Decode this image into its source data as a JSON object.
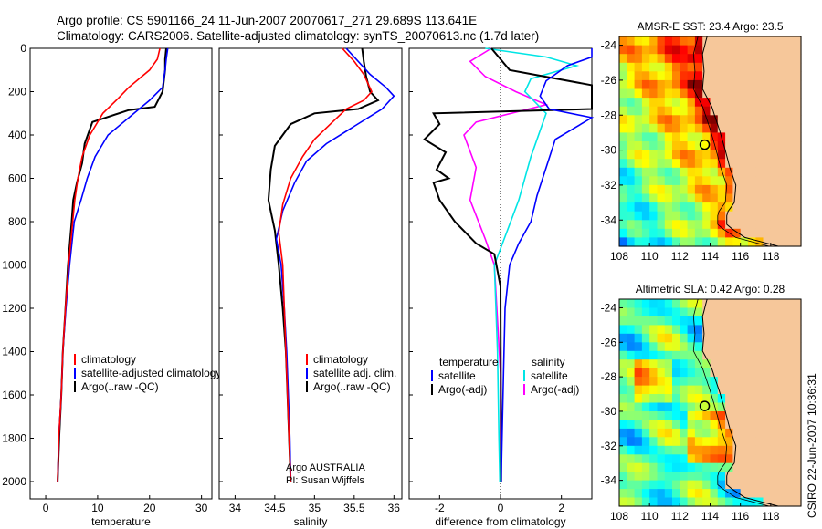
{
  "header": {
    "line1": "Argo profile: CS 5901166_24 11-Jun-2007 20070617_271 29.689S 113.641E",
    "line2": "Climatology: CARS2006. Satellite-adjusted climatology: synTS_20070613.nc (1.7d later)"
  },
  "side_label": "CSIRO 22-Jun-2007 10:36:31",
  "depth_ticks": [
    0,
    200,
    400,
    600,
    800,
    1000,
    1200,
    1400,
    1600,
    1800,
    2000
  ],
  "colors": {
    "climatology": "#ff0000",
    "satellite": "#0000ff",
    "argo": "#000000",
    "sat_salinity": "#00e5e5",
    "argo_salinity": "#ff00ff",
    "land": "#f6c79a"
  },
  "chart_data": [
    {
      "type": "line",
      "xlabel": "temperature",
      "xlim": [
        -3,
        32
      ],
      "ylim": [
        2080,
        0
      ],
      "xticks": [
        0,
        10,
        20,
        30
      ],
      "legend": [
        "climatology",
        "satellite-adjusted climatology",
        "Argo(..raw -QC)"
      ],
      "series": [
        {
          "name": "climatology",
          "color": "#ff0000",
          "x": [
            22,
            21.5,
            20,
            16,
            14,
            11,
            8.5,
            7,
            6.2,
            5.6,
            5.2,
            4.4,
            3.8,
            3.3,
            3.0,
            2.5,
            2.3
          ],
          "y": [
            0,
            50,
            100,
            180,
            230,
            300,
            400,
            500,
            600,
            700,
            800,
            1000,
            1200,
            1400,
            1600,
            1800,
            2000
          ]
        },
        {
          "name": "satellite-adjusted climatology",
          "color": "#0000ff",
          "x": [
            23.5,
            23.2,
            23,
            22.5,
            20,
            17,
            12,
            9.5,
            8,
            6.8,
            5.5,
            4.6,
            3.9,
            3.3,
            3.0,
            2.5,
            2.3
          ],
          "y": [
            0,
            50,
            100,
            180,
            240,
            300,
            400,
            500,
            600,
            700,
            800,
            1000,
            1200,
            1400,
            1600,
            1800,
            2000
          ]
        },
        {
          "name": "Argo(..raw -QC)",
          "color": "#000000",
          "x": [
            23.2,
            23,
            23,
            22.5,
            21,
            16,
            9,
            7.5,
            7,
            6,
            5.3,
            5,
            4.3,
            3.8,
            3.3,
            3.0,
            2.6,
            2.3
          ],
          "y": [
            0,
            50,
            100,
            200,
            270,
            285,
            340,
            440,
            530,
            620,
            700,
            800,
            1000,
            1200,
            1400,
            1600,
            1800,
            2000
          ]
        }
      ]
    },
    {
      "type": "line",
      "xlabel": "salinity",
      "xlim": [
        33.8,
        36.1
      ],
      "ylim": [
        2080,
        0
      ],
      "xticks": [
        34,
        34.5,
        35,
        35.5,
        36
      ],
      "legend": [
        "climatology",
        "satellite adj. clim.",
        "Argo(..raw -QC)"
      ],
      "annotation": [
        "Argo AUSTRALIA",
        "PI: Susan Wijffels"
      ],
      "series": [
        {
          "name": "climatology",
          "color": "#ff0000",
          "x": [
            35.35,
            35.5,
            35.62,
            35.72,
            35.62,
            35.4,
            35.2,
            35.0,
            34.85,
            34.7,
            34.6,
            34.55,
            34.6,
            34.62,
            34.64,
            34.66,
            34.68,
            34.7
          ],
          "y": [
            0,
            60,
            120,
            200,
            240,
            280,
            350,
            420,
            500,
            600,
            720,
            850,
            1000,
            1200,
            1400,
            1600,
            1800,
            2000
          ]
        },
        {
          "name": "satellite adj. clim.",
          "color": "#0000ff",
          "x": [
            35.4,
            35.55,
            35.7,
            35.9,
            36.0,
            35.85,
            35.5,
            35.15,
            34.9,
            34.75,
            34.6,
            34.52,
            34.58,
            34.62,
            34.65,
            34.67,
            34.69,
            34.7
          ],
          "y": [
            0,
            60,
            120,
            180,
            220,
            280,
            360,
            440,
            520,
            620,
            750,
            880,
            1000,
            1200,
            1400,
            1600,
            1800,
            2000
          ]
        },
        {
          "name": "Argo(..raw -QC)",
          "color": "#000000",
          "x": [
            35.6,
            35.62,
            35.65,
            35.7,
            35.8,
            35.55,
            35.0,
            34.7,
            34.5,
            34.45,
            34.42,
            34.5,
            34.55,
            34.6,
            34.64,
            34.66,
            34.68,
            34.7
          ],
          "y": [
            0,
            60,
            130,
            200,
            240,
            280,
            300,
            350,
            450,
            560,
            700,
            840,
            1000,
            1200,
            1400,
            1600,
            1800,
            2000
          ]
        }
      ]
    },
    {
      "type": "line",
      "xlabel": "difference from climatology",
      "xlim": [
        -3,
        3
      ],
      "ylim": [
        2080,
        0
      ],
      "xticks": [
        -2,
        0,
        2
      ],
      "legend_headers": [
        "temperature",
        "salinity"
      ],
      "legend": [
        "satellite",
        "Argo(-adj)",
        "satellite",
        "Argo(-adj)"
      ],
      "series": [
        {
          "name": "satellite",
          "color": "#0000ff",
          "x": [
            3.5,
            3,
            2.2,
            1.5,
            1.3,
            1.6,
            3,
            1.8,
            1.5,
            1.2,
            1.0,
            0.6,
            0.3,
            0.15,
            0.1,
            0.05,
            0.02
          ],
          "y": [
            0,
            40,
            80,
            150,
            220,
            280,
            320,
            420,
            550,
            680,
            800,
            900,
            1000,
            1200,
            1500,
            1800,
            2000
          ]
        },
        {
          "name": "Argo(-adj)",
          "color": "#000000",
          "x": [
            -0.3,
            0.3,
            3,
            3.5,
            3,
            -2.2,
            -2,
            -2.5,
            -1.8,
            -2.1,
            -1.7,
            -2.2,
            -2,
            -1.5,
            -0.8,
            -0.2,
            0,
            0.02
          ],
          "y": [
            0,
            100,
            170,
            230,
            280,
            300,
            350,
            420,
            480,
            560,
            600,
            620,
            700,
            800,
            900,
            950,
            1100,
            2000
          ]
        },
        {
          "name": "satellite",
          "color": "#00e5e5",
          "x": [
            -0.5,
            1.5,
            2.5,
            1.0,
            0.8,
            1.5,
            1.0,
            0.6,
            0.2,
            -0.2,
            -0.1,
            -0.05,
            -0.02
          ],
          "y": [
            0,
            40,
            80,
            140,
            200,
            300,
            500,
            700,
            850,
            1000,
            1400,
            1800,
            2000
          ]
        },
        {
          "name": "Argo(-adj)",
          "color": "#ff00ff",
          "x": [
            -0.3,
            -1.0,
            -0.5,
            0.5,
            1.5,
            -0.8,
            -1.2,
            -0.8,
            -1.0,
            -0.5,
            -0.2,
            0,
            0
          ],
          "y": [
            0,
            60,
            130,
            200,
            260,
            340,
            400,
            550,
            700,
            880,
            1000,
            1500,
            2000
          ]
        }
      ]
    },
    {
      "type": "heatmap",
      "title": "AMSR-E SST: 23.4 Argo: 23.5",
      "xlim": [
        108,
        120
      ],
      "ylim": [
        -35.5,
        -23.5
      ],
      "xticks": [
        108,
        110,
        112,
        114,
        116,
        118
      ],
      "yticks": [
        -24,
        -26,
        -28,
        -30,
        -32,
        -34
      ],
      "marker": {
        "lon": 113.641,
        "lat": -29.689
      }
    },
    {
      "type": "heatmap",
      "title": "Altimetric SLA: 0.42 Argo: 0.28",
      "xlim": [
        108,
        120
      ],
      "ylim": [
        -35.5,
        -23.5
      ],
      "xticks": [
        108,
        110,
        112,
        114,
        116,
        118
      ],
      "yticks": [
        -24,
        -26,
        -28,
        -30,
        -32,
        -34
      ],
      "marker": {
        "lon": 113.641,
        "lat": -29.689
      }
    }
  ]
}
